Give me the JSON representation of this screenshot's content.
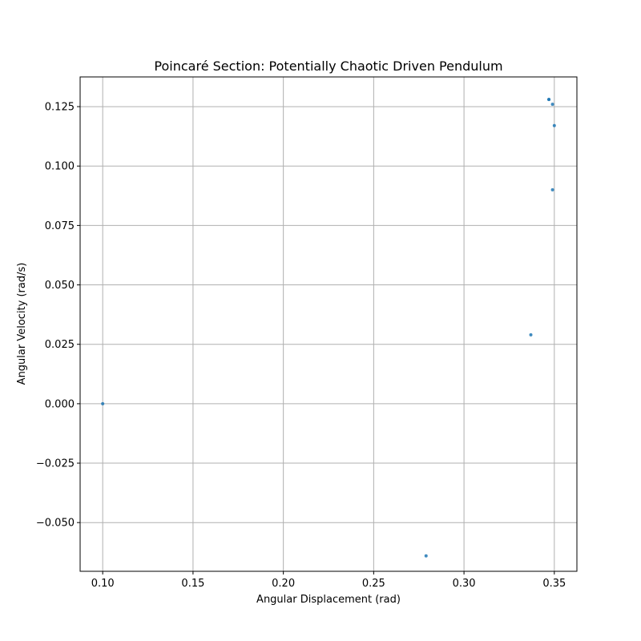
{
  "chart_data": {
    "type": "scatter",
    "title": "Poincaré Section: Potentially Chaotic Driven Pendulum",
    "xlabel": "Angular Displacement (rad)",
    "ylabel": "Angular Velocity (rad/s)",
    "xlim": [
      0.0875,
      0.3625
    ],
    "ylim": [
      -0.0705,
      0.1375
    ],
    "xticks": [
      0.1,
      0.15,
      0.2,
      0.25,
      0.3,
      0.35
    ],
    "xtick_labels": [
      "0.10",
      "0.15",
      "0.20",
      "0.25",
      "0.30",
      "0.35"
    ],
    "yticks": [
      -0.05,
      -0.025,
      0.0,
      0.025,
      0.05,
      0.075,
      0.1,
      0.125
    ],
    "ytick_labels": [
      "−0.050",
      "−0.025",
      "0.000",
      "0.025",
      "0.050",
      "0.075",
      "0.100",
      "0.125"
    ],
    "grid": true,
    "marker_color": "#1f77b4",
    "x": [
      0.1,
      0.279,
      0.337,
      0.349,
      0.35,
      0.349,
      0.347,
      0.347
    ],
    "y": [
      0.0,
      -0.064,
      0.029,
      0.09,
      0.117,
      0.126,
      0.128,
      0.128
    ]
  }
}
